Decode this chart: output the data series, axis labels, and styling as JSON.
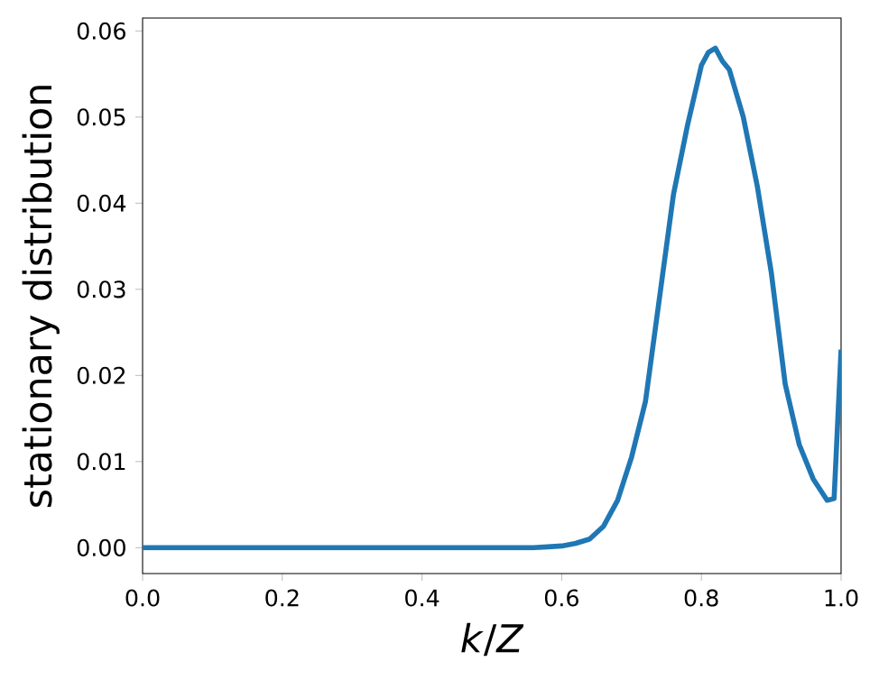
{
  "chart_data": {
    "type": "line",
    "xlabel": "*k*/*Z*",
    "ylabel": "stationary distribution",
    "x": [
      0,
      0.1,
      0.2,
      0.3,
      0.4,
      0.5,
      0.56,
      0.58,
      0.6,
      0.62,
      0.64,
      0.66,
      0.68,
      0.7,
      0.72,
      0.74,
      0.76,
      0.78,
      0.8,
      0.81,
      0.82,
      0.83,
      0.84,
      0.86,
      0.88,
      0.9,
      0.92,
      0.94,
      0.96,
      0.98,
      0.99,
      1.0
    ],
    "series": [
      {
        "color": "#1f77b4",
        "values": [
          0,
          0,
          0,
          0,
          0,
          0,
          0,
          0.0001,
          0.0002,
          0.0005,
          0.001,
          0.0025,
          0.0055,
          0.0105,
          0.017,
          0.029,
          0.041,
          0.049,
          0.056,
          0.0575,
          0.058,
          0.0565,
          0.0555,
          0.05,
          0.042,
          0.032,
          0.019,
          0.012,
          0.008,
          0.0055,
          0.0057,
          0.023
        ]
      }
    ],
    "xlim": [
      0,
      1
    ],
    "ylim": [
      -0.003,
      0.0615
    ],
    "xticks": [
      {
        "value": 0,
        "label": "0.0"
      },
      {
        "value": 0.2,
        "label": "0.2"
      },
      {
        "value": 0.4,
        "label": "0.4"
      },
      {
        "value": 0.6,
        "label": "0.6"
      },
      {
        "value": 0.8,
        "label": "0.8"
      },
      {
        "value": 1,
        "label": "1.0"
      }
    ],
    "yticks": [
      {
        "value": 0,
        "label": "0.00"
      },
      {
        "value": 0.01,
        "label": "0.01"
      },
      {
        "value": 0.02,
        "label": "0.02"
      },
      {
        "value": 0.03,
        "label": "0.03"
      },
      {
        "value": 0.04,
        "label": "0.04"
      },
      {
        "value": 0.05,
        "label": "0.05"
      },
      {
        "value": 0.06,
        "label": "0.06"
      }
    ],
    "grid": false,
    "marker": "none",
    "line_style": "solid"
  }
}
